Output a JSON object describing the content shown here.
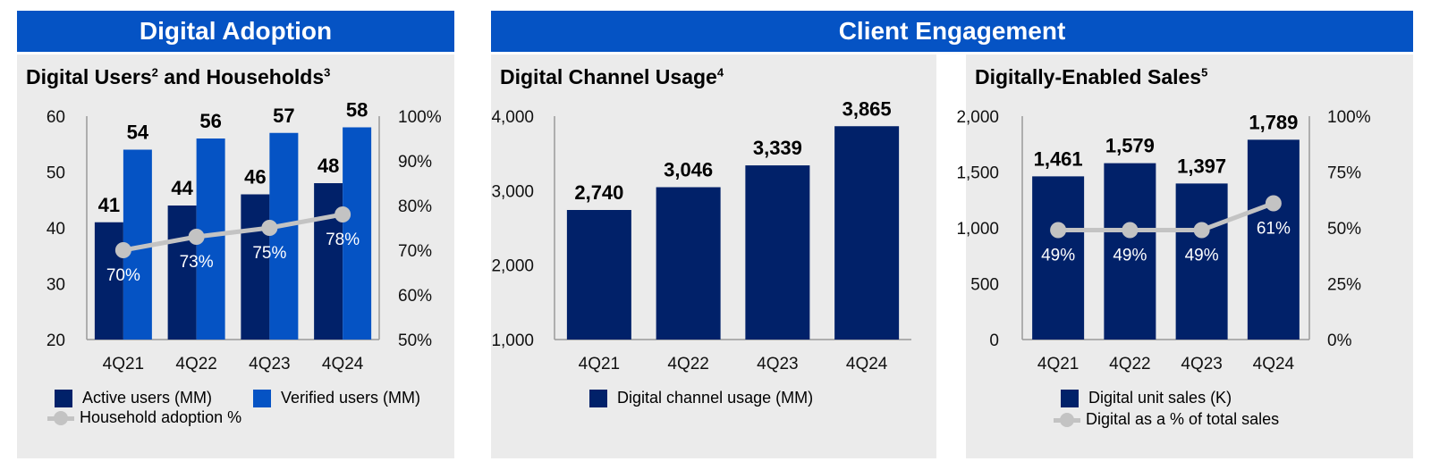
{
  "headers": {
    "left": "Digital Adoption",
    "right": "Client Engagement"
  },
  "panels": {
    "p1": {
      "title": "Digital Users",
      "title_sup": "2",
      "title_mid": " and Households",
      "title_sup2": "3"
    },
    "p2": {
      "title": "Digital Channel Usage",
      "title_sup": "4"
    },
    "p3": {
      "title": "Digitally-Enabled Sales",
      "title_sup": "5"
    }
  },
  "colors": {
    "dark_navy": "#012169",
    "bright_blue": "#0553c4",
    "line_gray": "#c3c3c3",
    "panel_bg": "#ebebeb"
  },
  "chart_data": [
    {
      "type": "bar",
      "categories": [
        "4Q21",
        "4Q22",
        "4Q23",
        "4Q24"
      ],
      "series": [
        {
          "name": "Active users (MM)",
          "values": [
            41,
            44,
            46,
            48
          ],
          "labels": [
            "41",
            "44",
            "46",
            "48"
          ],
          "color": "#012169"
        },
        {
          "name": "Verified users (MM)",
          "values": [
            54,
            56,
            57,
            58
          ],
          "labels": [
            "54",
            "56",
            "57",
            "58"
          ],
          "color": "#0553c4"
        },
        {
          "name": "Household adoption %",
          "type": "line",
          "axis": "right",
          "values": [
            70,
            73,
            75,
            78
          ],
          "labels": [
            "70%",
            "73%",
            "75%",
            "78%"
          ],
          "color": "#c3c3c3"
        }
      ],
      "ylim": [
        20,
        60
      ],
      "yticks": [
        "20",
        "30",
        "40",
        "50",
        "60"
      ],
      "y2lim": [
        50,
        100
      ],
      "y2ticks": [
        "50%",
        "60%",
        "70%",
        "80%",
        "90%",
        "100%"
      ],
      "grid": false,
      "legend": "bottom"
    },
    {
      "type": "bar",
      "categories": [
        "4Q21",
        "4Q22",
        "4Q23",
        "4Q24"
      ],
      "series": [
        {
          "name": "Digital channel usage (MM)",
          "values": [
            2740,
            3046,
            3339,
            3865
          ],
          "labels": [
            "2,740",
            "3,046",
            "3,339",
            "3,865"
          ],
          "color": "#012169"
        }
      ],
      "ylim": [
        1000,
        4000
      ],
      "yticks": [
        "1,000",
        "2,000",
        "3,000",
        "4,000"
      ],
      "grid": false,
      "legend": "bottom"
    },
    {
      "type": "bar",
      "categories": [
        "4Q21",
        "4Q22",
        "4Q23",
        "4Q24"
      ],
      "series": [
        {
          "name": "Digital unit sales (K)",
          "values": [
            1461,
            1579,
            1397,
            1789
          ],
          "labels": [
            "1,461",
            "1,579",
            "1,397",
            "1,789"
          ],
          "color": "#012169"
        },
        {
          "name": "Digital as a % of total sales",
          "type": "line",
          "axis": "right",
          "values": [
            49,
            49,
            49,
            61
          ],
          "labels": [
            "49%",
            "49%",
            "49%",
            "61%"
          ],
          "color": "#c3c3c3"
        }
      ],
      "ylim": [
        0,
        2000
      ],
      "yticks": [
        "0",
        "500",
        "1,000",
        "1,500",
        "2,000"
      ],
      "y2lim": [
        0,
        100
      ],
      "y2ticks": [
        "0%",
        "25%",
        "50%",
        "75%",
        "100%"
      ],
      "grid": false,
      "legend": "bottom"
    }
  ]
}
